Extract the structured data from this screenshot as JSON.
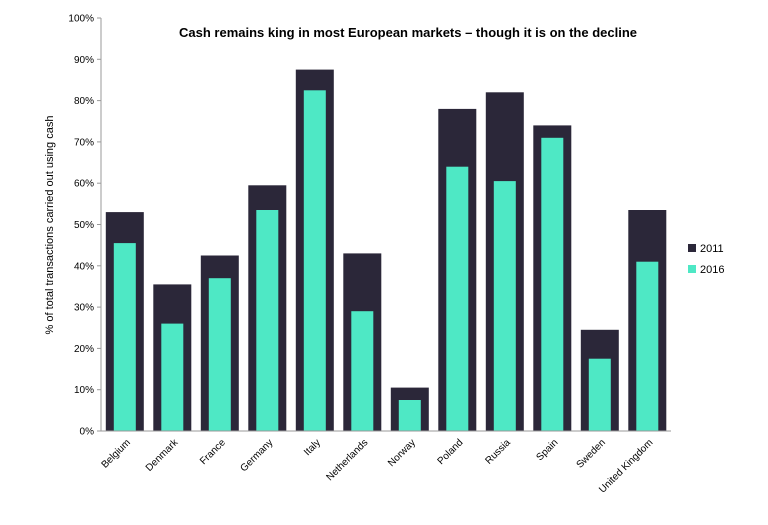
{
  "chart_data": {
    "type": "bar",
    "title": "Cash remains king in most European markets – though it is on the decline",
    "ylabel": "% of total transactions carried out using cash",
    "xlabel": "",
    "categories": [
      "Belgium",
      "Denmark",
      "France",
      "Germany",
      "Italy",
      "Netherlands",
      "Norway",
      "Poland",
      "Russia",
      "Spain",
      "Sweden",
      "United Kingdom"
    ],
    "series": [
      {
        "name": "2011",
        "color": "#2b2739",
        "values": [
          53,
          35.5,
          42.5,
          59.5,
          87.5,
          43,
          10.5,
          78,
          82,
          74,
          24.5,
          53.5
        ]
      },
      {
        "name": "2016",
        "color": "#4ee8c5",
        "values": [
          45.5,
          26,
          37,
          53.5,
          82.5,
          29,
          7.5,
          64,
          60.5,
          71,
          17.5,
          41
        ]
      }
    ],
    "ylim": [
      0,
      100
    ],
    "yticks": [
      "0%",
      "10%",
      "20%",
      "30%",
      "40%",
      "50%",
      "60%",
      "70%",
      "80%",
      "90%",
      "100%"
    ],
    "grid": false,
    "legend": "right",
    "overlap": true
  }
}
